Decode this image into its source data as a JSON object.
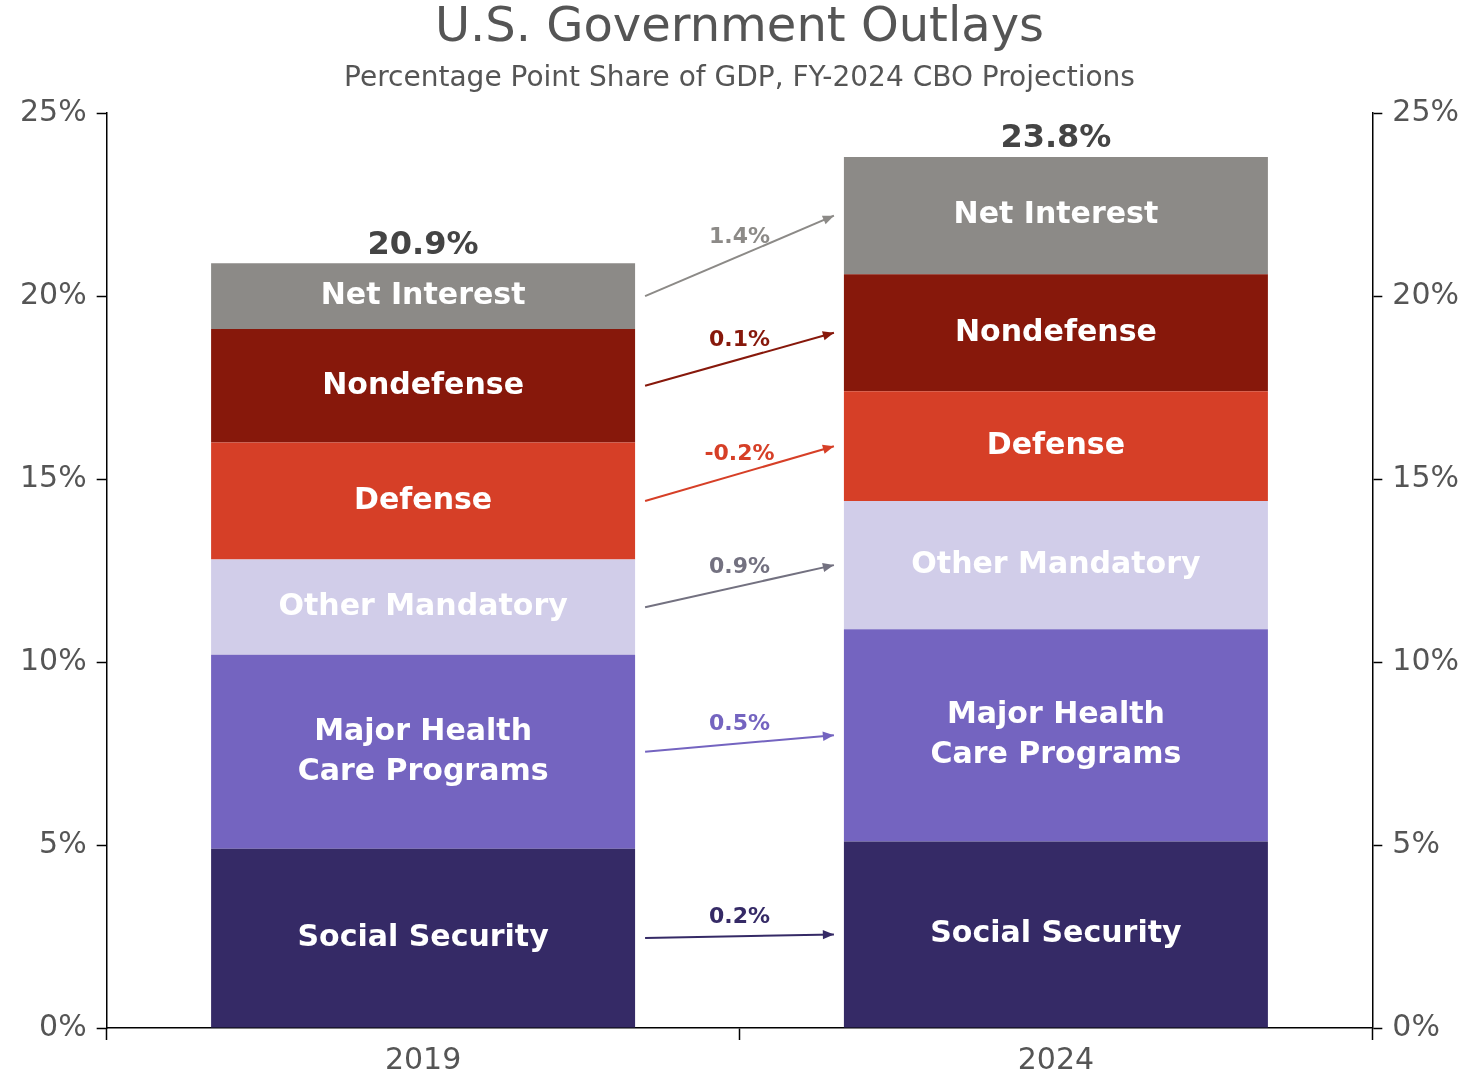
{
  "chart_data": {
    "type": "bar",
    "title": "U.S. Government Outlays",
    "subtitle": "Percentage Point Share of GDP, FY-2024 CBO Projections",
    "categories": [
      "2019",
      "2024"
    ],
    "stacked": true,
    "legend": false,
    "grid": false,
    "series": [
      {
        "name": "Social Security",
        "color": "#352a66",
        "values": [
          4.9,
          5.1
        ]
      },
      {
        "name": "Major Health Care Programs",
        "color": "#7464c0",
        "values": [
          5.3,
          5.8
        ]
      },
      {
        "name": "Other Mandatory",
        "color": "#d1cde9",
        "values": [
          2.6,
          3.5
        ]
      },
      {
        "name": "Defense",
        "color": "#d63f27",
        "values": [
          3.2,
          3.0
        ]
      },
      {
        "name": "Nondefense",
        "color": "#87180b",
        "values": [
          3.1,
          3.2
        ]
      },
      {
        "name": "Net Interest",
        "color": "#8c8a87",
        "values": [
          1.8,
          3.2
        ]
      }
    ],
    "totals": [
      "20.9%",
      "23.8%"
    ],
    "annotations": [
      "0.2%",
      "0.5%",
      "0.9%",
      "-0.2%",
      "0.1%",
      "1.4%"
    ],
    "ylim": [
      0,
      25
    ],
    "yticks": [
      {
        "value": 0,
        "label": "0%"
      },
      {
        "value": 5,
        "label": "5%"
      },
      {
        "value": 10,
        "label": "10%"
      },
      {
        "value": 15,
        "label": "15%"
      },
      {
        "value": 20,
        "label": "20%"
      },
      {
        "value": 25,
        "label": "25%"
      }
    ],
    "y2lim": [
      0,
      25
    ],
    "y2ticks": [
      {
        "value": 0,
        "label": "0%"
      },
      {
        "value": 5,
        "label": "5%"
      },
      {
        "value": 10,
        "label": "10%"
      },
      {
        "value": 15,
        "label": "15%"
      },
      {
        "value": 20,
        "label": "20%"
      },
      {
        "value": 25,
        "label": "25%"
      }
    ]
  }
}
